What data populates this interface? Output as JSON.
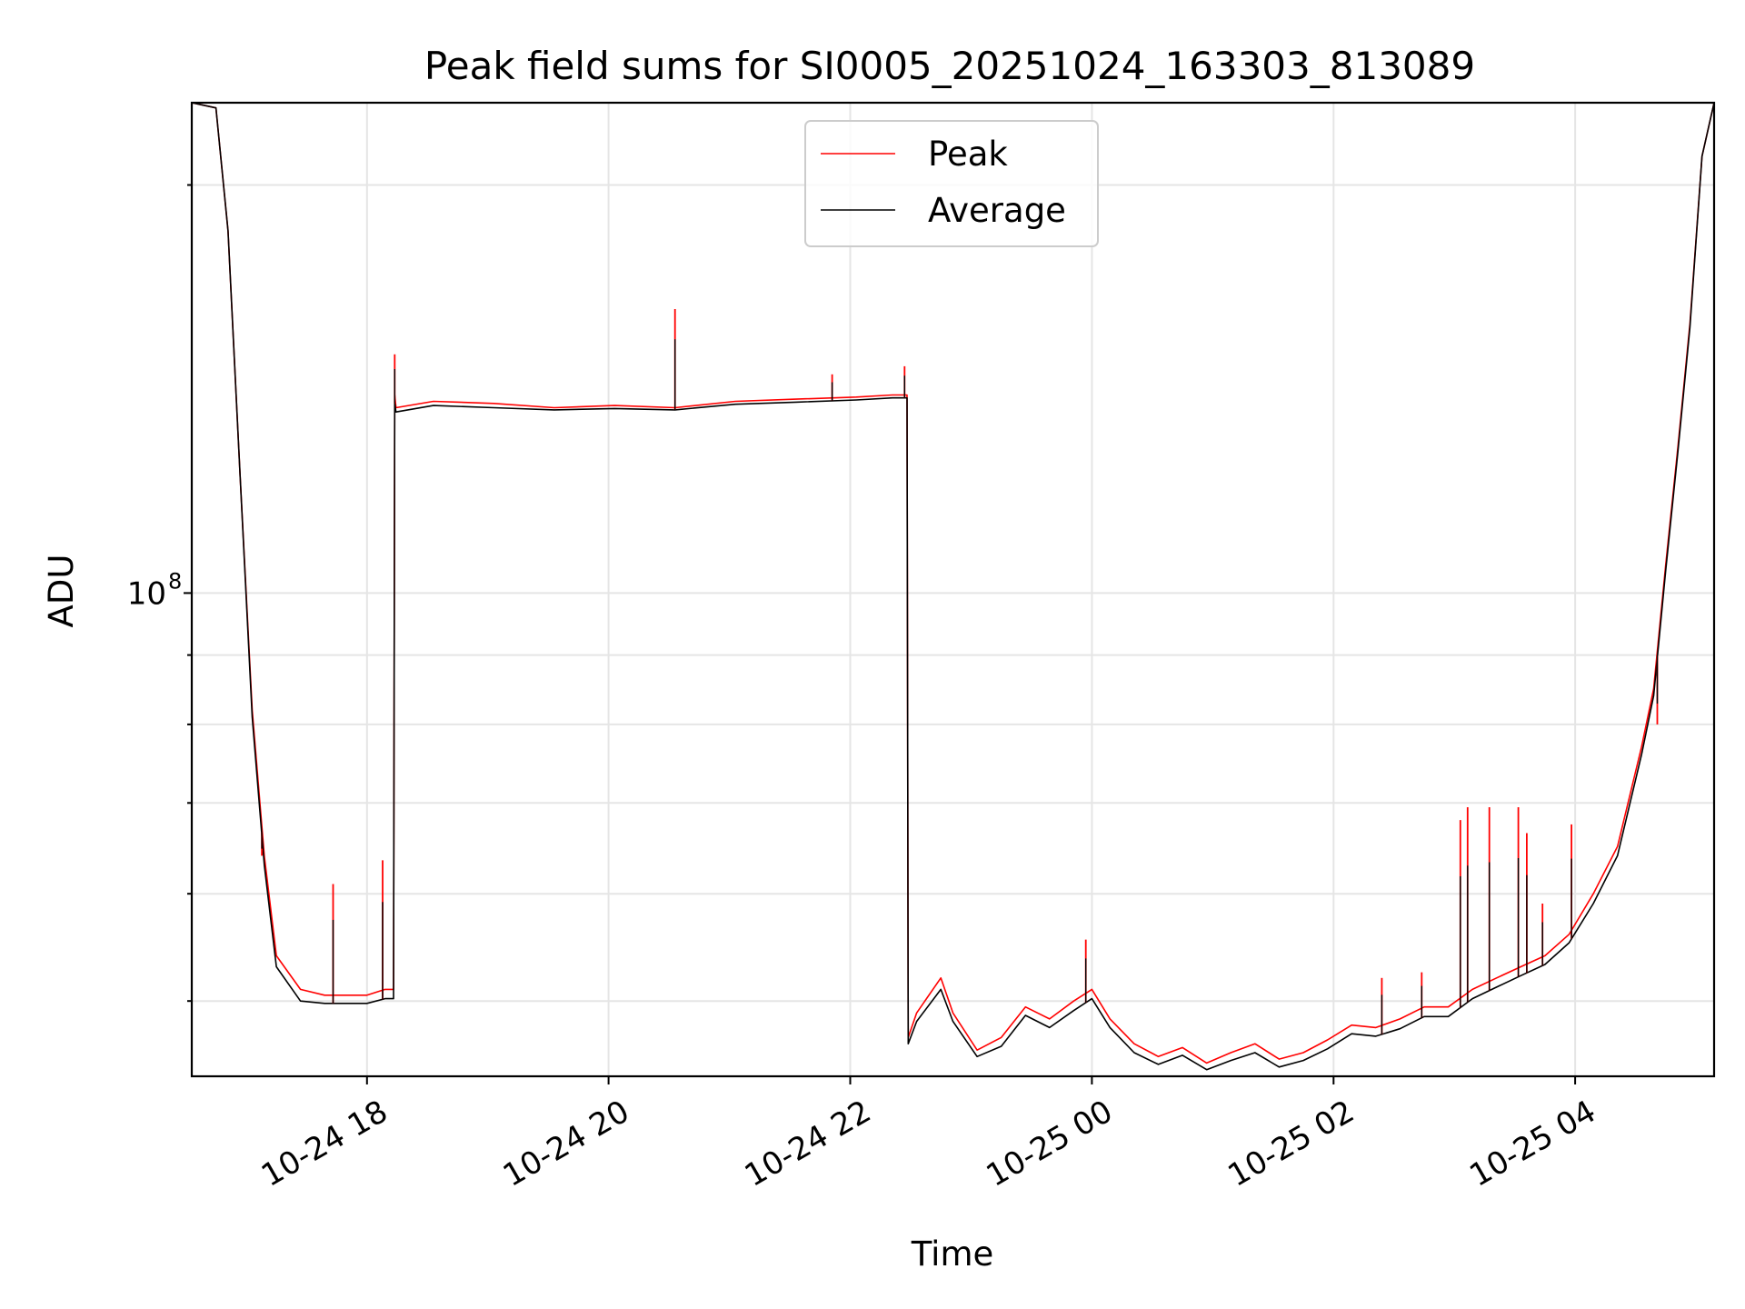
{
  "chart_data": {
    "type": "line",
    "title": "Peak field sums for SI0005_20251024_163303_813089",
    "xlabel": "Time",
    "ylabel": "ADU",
    "yscale": "log",
    "x_unit": "hours after 2025-10-24 16:33",
    "xlim": [
      0,
      12.6
    ],
    "ylim": [
      44000000,
      230000000
    ],
    "x_ticks": [
      {
        "value": 1.45,
        "label": "10-24 18"
      },
      {
        "value": 3.45,
        "label": "10-24 20"
      },
      {
        "value": 5.45,
        "label": "10-24 22"
      },
      {
        "value": 7.45,
        "label": "10-25 00"
      },
      {
        "value": 9.45,
        "label": "10-25 02"
      },
      {
        "value": 11.45,
        "label": "10-25 04"
      }
    ],
    "y_major_ticks": [
      {
        "value": 100000000,
        "base": "10",
        "exponent": "8"
      }
    ],
    "y_minor_ticks": [
      50000000,
      60000000,
      70000000,
      80000000,
      90000000,
      200000000
    ],
    "grid": true,
    "legend": {
      "placement": "top-center",
      "entries": [
        {
          "label": "Peak",
          "color": "#ff0000"
        },
        {
          "label": "Average",
          "color": "#000000"
        }
      ]
    },
    "series": [
      {
        "name": "Peak",
        "color": "#ff0000",
        "x": [
          0.0,
          0.2,
          0.3,
          0.4,
          0.5,
          0.6,
          0.7,
          0.9,
          1.1,
          1.3,
          1.45,
          1.6,
          1.67,
          1.68,
          1.69,
          2.0,
          2.5,
          3.0,
          3.5,
          4.0,
          4.5,
          5.0,
          5.5,
          5.8,
          5.92,
          5.93,
          6.0,
          6.2,
          6.3,
          6.5,
          6.7,
          6.9,
          7.1,
          7.3,
          7.45,
          7.6,
          7.8,
          8.0,
          8.2,
          8.4,
          8.6,
          8.8,
          9.0,
          9.2,
          9.4,
          9.6,
          9.8,
          10.0,
          10.2,
          10.4,
          10.6,
          10.8,
          11.0,
          11.2,
          11.4,
          11.6,
          11.8,
          12.0,
          12.1,
          12.2,
          12.3,
          12.4,
          12.5,
          12.6
        ],
        "y": [
          230000000,
          228000000,
          185000000,
          122000000,
          82000000,
          64000000,
          54000000,
          51000000,
          50500000,
          50500000,
          50500000,
          51000000,
          51000000,
          140000000,
          137000000,
          138500000,
          138000000,
          137000000,
          137500000,
          137000000,
          138500000,
          139000000,
          139500000,
          140000000,
          140000000,
          47000000,
          49000000,
          52000000,
          49000000,
          46000000,
          47000000,
          49500000,
          48500000,
          50000000,
          51000000,
          48500000,
          46500000,
          45500000,
          46200000,
          45000000,
          45800000,
          46500000,
          45300000,
          45800000,
          46800000,
          48000000,
          47800000,
          48500000,
          49500000,
          49500000,
          51000000,
          52000000,
          53000000,
          54000000,
          56000000,
          60000000,
          65000000,
          77000000,
          85000000,
          105000000,
          128000000,
          158000000,
          210000000,
          230000000
        ]
      },
      {
        "name": "Average",
        "color": "#000000",
        "x": [
          0.0,
          0.2,
          0.3,
          0.4,
          0.5,
          0.6,
          0.7,
          0.9,
          1.1,
          1.3,
          1.45,
          1.6,
          1.67,
          1.68,
          1.69,
          2.0,
          2.5,
          3.0,
          3.5,
          4.0,
          4.5,
          5.0,
          5.5,
          5.8,
          5.92,
          5.93,
          6.0,
          6.2,
          6.3,
          6.5,
          6.7,
          6.9,
          7.1,
          7.3,
          7.45,
          7.6,
          7.8,
          8.0,
          8.2,
          8.4,
          8.6,
          8.8,
          9.0,
          9.2,
          9.4,
          9.6,
          9.8,
          10.0,
          10.2,
          10.4,
          10.6,
          10.8,
          11.0,
          11.2,
          11.4,
          11.6,
          11.8,
          12.0,
          12.1,
          12.2,
          12.3,
          12.4,
          12.5,
          12.6
        ],
        "y": [
          230000000,
          228000000,
          185000000,
          122000000,
          81000000,
          63000000,
          53000000,
          50000000,
          49800000,
          49800000,
          49800000,
          50200000,
          50200000,
          138000000,
          136000000,
          137500000,
          137000000,
          136500000,
          136800000,
          136500000,
          137800000,
          138300000,
          138800000,
          139300000,
          139300000,
          46500000,
          48300000,
          51000000,
          48300000,
          45500000,
          46300000,
          48800000,
          47800000,
          49200000,
          50200000,
          47800000,
          45800000,
          44900000,
          45600000,
          44500000,
          45200000,
          45800000,
          44700000,
          45200000,
          46100000,
          47300000,
          47100000,
          47700000,
          48700000,
          48700000,
          50200000,
          51200000,
          52200000,
          53200000,
          55200000,
          59000000,
          64000000,
          76000000,
          84000000,
          104000000,
          127000000,
          157000000,
          210000000,
          230000000
        ]
      }
    ],
    "peak_spikes": [
      {
        "x": 0.58,
        "y": 64000000
      },
      {
        "x": 1.17,
        "y": 61000000
      },
      {
        "x": 1.58,
        "y": 63500000
      },
      {
        "x": 1.68,
        "y": 150000000
      },
      {
        "x": 4.0,
        "y": 162000000
      },
      {
        "x": 5.3,
        "y": 145000000
      },
      {
        "x": 5.9,
        "y": 147000000
      },
      {
        "x": 7.4,
        "y": 55500000
      },
      {
        "x": 9.85,
        "y": 52000000
      },
      {
        "x": 10.18,
        "y": 52500000
      },
      {
        "x": 10.5,
        "y": 68000000
      },
      {
        "x": 10.56,
        "y": 69500000
      },
      {
        "x": 10.74,
        "y": 69500000
      },
      {
        "x": 10.98,
        "y": 69500000
      },
      {
        "x": 11.05,
        "y": 66500000
      },
      {
        "x": 11.18,
        "y": 59000000
      },
      {
        "x": 11.42,
        "y": 67500000
      },
      {
        "x": 12.13,
        "y": 80000000
      }
    ]
  }
}
